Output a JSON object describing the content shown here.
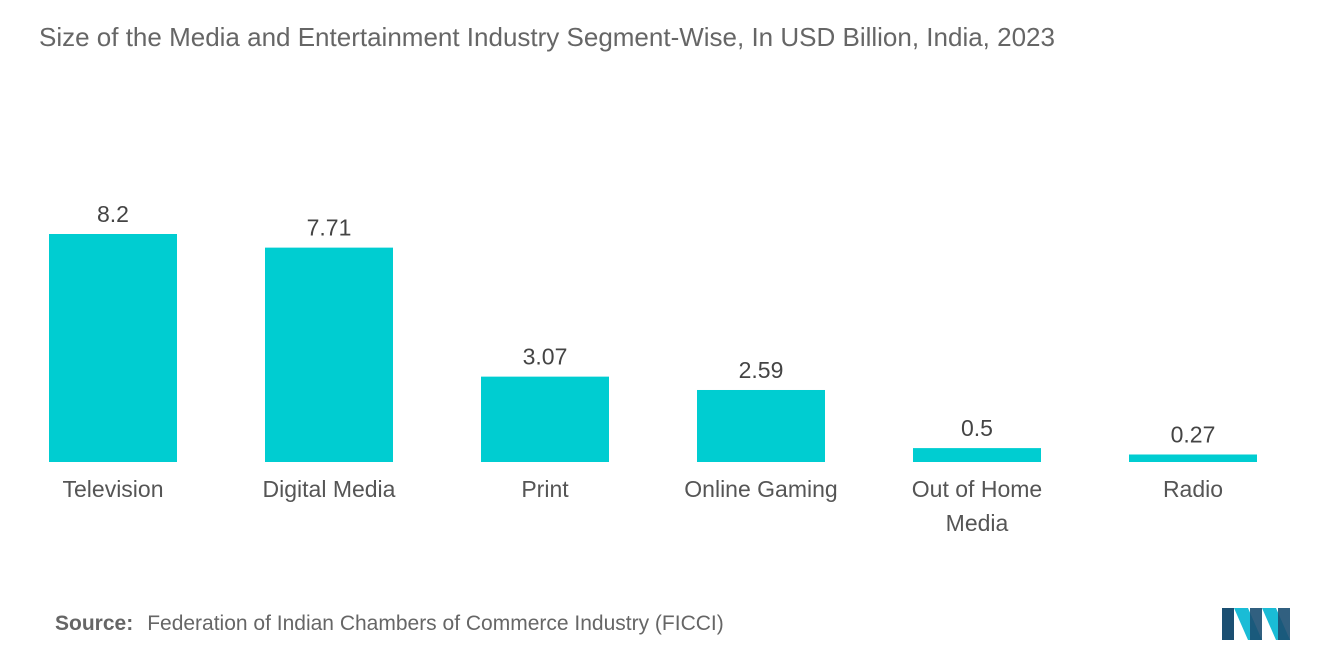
{
  "chart_data": {
    "type": "bar",
    "title": "Size of the Media and Entertainment Industry Segment-Wise, In USD Billion, India, 2023",
    "categories": [
      "Television",
      "Digital Media",
      "Print",
      "Online Gaming",
      "Out of Home Media",
      "Radio"
    ],
    "values": [
      8.2,
      7.71,
      3.07,
      2.59,
      0.5,
      0.27
    ],
    "value_labels": [
      "8.2",
      "7.71",
      "3.07",
      "2.59",
      "0.5",
      "0.27"
    ],
    "xlabel": "",
    "ylabel": "",
    "ylim": [
      0,
      8.2
    ],
    "grid": false,
    "bar_color": "#00CDD1"
  },
  "source": {
    "label": "Source:",
    "text": "Federation of Indian Chambers of Commerce Industry (FICCI)"
  },
  "logo": {
    "icon": "mordor-intelligence-logo-icon",
    "colors": [
      "#1B4F72",
      "#1ABCD6"
    ]
  }
}
